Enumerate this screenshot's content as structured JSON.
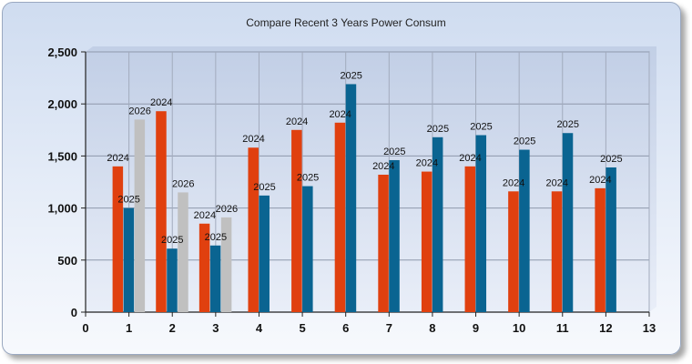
{
  "chart_data": {
    "type": "bar",
    "title": "Compare Recent 3 Years Power Consum",
    "xlabel": "",
    "ylabel": "",
    "x_ticks": [
      0,
      1,
      2,
      3,
      4,
      5,
      6,
      7,
      8,
      9,
      10,
      11,
      12,
      13
    ],
    "xlim": [
      0,
      13
    ],
    "y_ticks": [
      "0",
      "500",
      "1,000",
      "1,500",
      "2,000",
      "2,500"
    ],
    "ylim": [
      0,
      2500
    ],
    "grid": true,
    "legend": "none",
    "categories": [
      1,
      2,
      3,
      4,
      5,
      6,
      7,
      8,
      9,
      10,
      11,
      12
    ],
    "series": [
      {
        "name": "2024",
        "color": "#e0400f",
        "values": [
          1400,
          1930,
          850,
          1580,
          1750,
          1820,
          1320,
          1350,
          1400,
          1160,
          1160,
          1190
        ]
      },
      {
        "name": "2025",
        "color": "#0a6491",
        "values": [
          1000,
          610,
          640,
          1120,
          1210,
          2190,
          1460,
          1680,
          1700,
          1560,
          1720,
          1390
        ]
      },
      {
        "name": "2026",
        "color": "#c0c0c0",
        "values": [
          1850,
          1150,
          910,
          null,
          null,
          null,
          null,
          null,
          null,
          null,
          null,
          null
        ]
      }
    ]
  }
}
